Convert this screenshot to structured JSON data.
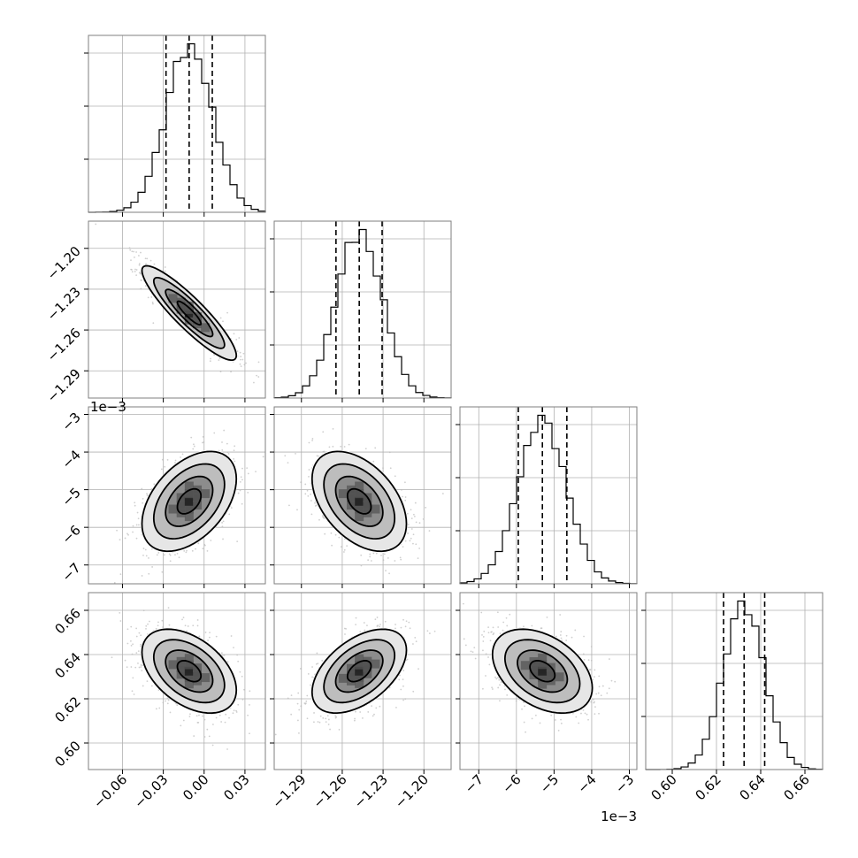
{
  "chart_data": {
    "type": "corner",
    "grid": true,
    "parameters": [
      {
        "label": "",
        "range": [
          -0.085,
          0.045
        ],
        "ticks": [
          -0.06,
          -0.03,
          0.0,
          0.03
        ],
        "tick_labels": [
          "−0.06",
          "−0.03",
          "0.00",
          "0.03"
        ],
        "offset_text": "",
        "quantiles": [
          -0.028,
          -0.011,
          0.006
        ],
        "mean": -0.011,
        "sd": 0.017
      },
      {
        "label": "",
        "range": [
          -1.31,
          -1.18
        ],
        "ticks": [
          -1.29,
          -1.26,
          -1.23,
          -1.2
        ],
        "tick_labels": [
          "−1.29",
          "−1.26",
          "−1.23",
          "−1.20"
        ],
        "offset_text": "1e−3",
        "quantiles": [
          -1.2646,
          -1.2475,
          -1.2307
        ],
        "mean": -1.2475,
        "sd": 0.017
      },
      {
        "label": "",
        "range": [
          -7.5,
          -2.8
        ],
        "ticks": [
          -7,
          -6,
          -5,
          -4,
          -3
        ],
        "tick_labels": [
          "−7",
          "−6",
          "−5",
          "−4",
          "−3"
        ],
        "offset_text": "1e−3",
        "quantiles": [
          -5.95,
          -5.31,
          -4.66
        ],
        "mean": -5.31,
        "sd": 0.65
      },
      {
        "label": "",
        "range": [
          0.588,
          0.668
        ],
        "ticks": [
          0.6,
          0.62,
          0.64,
          0.66
        ],
        "tick_labels": [
          "0.60",
          "0.62",
          "0.64",
          "0.66"
        ],
        "offset_text": "",
        "quantiles": [
          0.6232,
          0.6325,
          0.6418
        ],
        "mean": 0.6325,
        "sd": 0.0093
      }
    ],
    "correlations": [
      {
        "i": 1,
        "j": 0,
        "r": -0.9
      },
      {
        "i": 2,
        "j": 0,
        "r": 0.45
      },
      {
        "i": 2,
        "j": 1,
        "r": -0.45
      },
      {
        "i": 3,
        "j": 0,
        "r": -0.45
      },
      {
        "i": 3,
        "j": 1,
        "r": 0.5
      },
      {
        "i": 3,
        "j": 2,
        "r": -0.4
      }
    ],
    "contour_levels_sigma": [
      0.5,
      1.0,
      1.5,
      2.0
    ],
    "dashed_quantile_lines": [
      0.16,
      0.5,
      0.84
    ],
    "colors": {
      "line": "#000000",
      "scatter": "#bbbbbb",
      "grid": "#b0b0b0",
      "frame": "#7f7f7f"
    }
  }
}
